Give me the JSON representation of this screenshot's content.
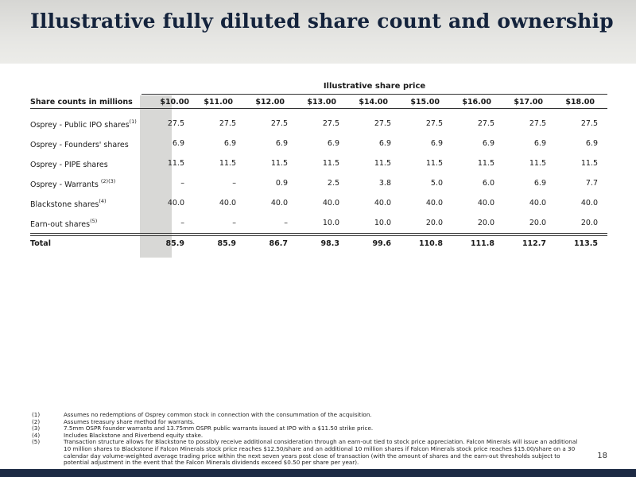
{
  "page": {
    "title": "Illustrative fully diluted share count and ownership",
    "page_number": "18"
  },
  "table": {
    "super_header": "Illustrative share price",
    "row_header": "Share counts in millions",
    "columns": [
      "$10.00",
      "$11.00",
      "$12.00",
      "$13.00",
      "$14.00",
      "$15.00",
      "$16.00",
      "$17.00",
      "$18.00"
    ],
    "rows": [
      {
        "label": "Osprey - Public IPO shares",
        "sup": "(1)",
        "values": [
          "27.5",
          "27.5",
          "27.5",
          "27.5",
          "27.5",
          "27.5",
          "27.5",
          "27.5",
          "27.5"
        ]
      },
      {
        "label": "Osprey - Founders' shares",
        "sup": "",
        "values": [
          "6.9",
          "6.9",
          "6.9",
          "6.9",
          "6.9",
          "6.9",
          "6.9",
          "6.9",
          "6.9"
        ]
      },
      {
        "label": "Osprey - PIPE shares",
        "sup": "",
        "values": [
          "11.5",
          "11.5",
          "11.5",
          "11.5",
          "11.5",
          "11.5",
          "11.5",
          "11.5",
          "11.5"
        ]
      },
      {
        "label": "Osprey - Warrants ",
        "sup": "(2)(3)",
        "values": [
          "–",
          "–",
          "0.9",
          "2.5",
          "3.8",
          "5.0",
          "6.0",
          "6.9",
          "7.7"
        ]
      },
      {
        "label": "Blackstone shares",
        "sup": "(4)",
        "values": [
          "40.0",
          "40.0",
          "40.0",
          "40.0",
          "40.0",
          "40.0",
          "40.0",
          "40.0",
          "40.0"
        ]
      },
      {
        "label": "Earn-out shares",
        "sup": "(5)",
        "values": [
          "–",
          "–",
          "–",
          "10.0",
          "10.0",
          "20.0",
          "20.0",
          "20.0",
          "20.0"
        ]
      }
    ],
    "total": {
      "label": "Total",
      "values": [
        "85.9",
        "85.9",
        "86.7",
        "98.3",
        "99.6",
        "110.8",
        "111.8",
        "112.7",
        "113.5"
      ]
    }
  },
  "footnotes": [
    {
      "num": "(1)",
      "text": "Assumes no redemptions of Osprey common stock in connection with the consummation of the acquisition."
    },
    {
      "num": "(2)",
      "text": "Assumes treasury share method for warrants."
    },
    {
      "num": "(3)",
      "text": "7.5mm OSPR founder warrants and 13.75mm OSPR public warrants issued at IPO with a $11.50 strike price."
    },
    {
      "num": "(4)",
      "text": "Includes Blackstone and Riverbend equity stake."
    },
    {
      "num": "(5)",
      "text": "Transaction structure allows for Blackstone to possibly receive additional consideration through an earn-out tied to stock price appreciation. Falcon Minerals will issue an additional 10 million shares to Blackstone if Falcon Minerals stock price reaches $12.50/share and an additional 10 million shares if Falcon Minerals stock price reaches $15.00/share on a 30 calendar day volume-weighted average trading price within the next seven years post close of transaction (with the amount of shares and the earn-out thresholds subject to potential adjustment in the event that the Falcon Minerals dividends exceed $0.50 per share per year)."
    }
  ],
  "colors": {
    "title": "#14233c",
    "highlight_column": "#d8d8d6",
    "bottom_bar": "#1d2a44"
  }
}
